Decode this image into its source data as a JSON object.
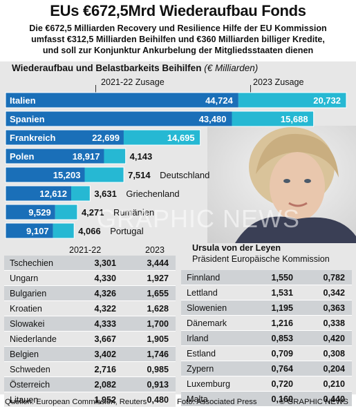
{
  "header": {
    "title": "EUs €672,5Mrd Wiederaufbau Fonds",
    "subtitle_lines": [
      "Die €672,5 Milliarden Recovery und Resilience Hilfe der EU Kommission",
      "umfasst €312,5 Milliarden Beihilfen und €360 Milliarden billiger Kredite,",
      "und soll zur Konjunktur Ankurbelung der Mitgliedsstaaten dienen"
    ]
  },
  "legend": {
    "first": "2021-22 Zusage",
    "second": "2023 Zusage"
  },
  "colors": {
    "primary": "#1a6fb8",
    "secondary": "#26b8d3",
    "band": "#e7e7e7",
    "row": "#cfd2d5"
  },
  "chart_data": {
    "type": "bar",
    "title": "Wiederaufbau und Belastbarkeits Beihilfen",
    "unit": "(€ Milliarden)",
    "categories": [
      "Italien",
      "Spanien",
      "Frankreich",
      "Polen",
      "Deutschland",
      "Griechenland",
      "Rumänien",
      "Portugal"
    ],
    "series": [
      {
        "name": "2021-22 Zusage",
        "values": [
          44.724,
          43.48,
          22.699,
          18.917,
          15.203,
          12.612,
          9.529,
          9.107
        ],
        "labels": [
          "44,724",
          "43,480",
          "22,699",
          "18,917",
          "15,203",
          "12,612",
          "9,529",
          "9,107"
        ]
      },
      {
        "name": "2023 Zusage",
        "values": [
          20.732,
          15.688,
          14.695,
          4.143,
          7.514,
          3.631,
          4.271,
          4.066
        ],
        "labels": [
          "20,732",
          "15,688",
          "14,695",
          "4,143",
          "7,514",
          "3,631",
          "4,271",
          "4,066"
        ]
      }
    ],
    "stacked": true
  },
  "person": {
    "name": "Ursula von der Leyen",
    "role": "Präsident Europäische Kommission",
    "watermark": "GRAPHIC NEWS"
  },
  "table": {
    "col1": "2021-22",
    "col2": "2023",
    "left": [
      {
        "country": "Tschechien",
        "a": "3,301",
        "b": "3,444"
      },
      {
        "country": "Ungarn",
        "a": "4,330",
        "b": "1,927"
      },
      {
        "country": "Bulgarien",
        "a": "4,326",
        "b": "1,655"
      },
      {
        "country": "Kroatien",
        "a": "4,322",
        "b": "1,628"
      },
      {
        "country": "Slowakei",
        "a": "4,333",
        "b": "1,700"
      },
      {
        "country": "Niederlande",
        "a": "3,667",
        "b": "1,905"
      },
      {
        "country": "Belgien",
        "a": "3,402",
        "b": "1,746"
      },
      {
        "country": "Schweden",
        "a": "2,716",
        "b": "0,985"
      },
      {
        "country": "Österreich",
        "a": "2,082",
        "b": "0,913"
      },
      {
        "country": "Litauen",
        "a": "1,952",
        "b": "0,480"
      }
    ],
    "right": [
      {
        "country": "Finnland",
        "a": "1,550",
        "b": "0,782"
      },
      {
        "country": "Lettland",
        "a": "1,531",
        "b": "0,342"
      },
      {
        "country": "Slowenien",
        "a": "1,195",
        "b": "0,363"
      },
      {
        "country": "Dänemark",
        "a": "1,216",
        "b": "0,338"
      },
      {
        "country": "Irland",
        "a": "0,853",
        "b": "0,420"
      },
      {
        "country": "Estland",
        "a": "0,709",
        "b": "0,308"
      },
      {
        "country": "Zypern",
        "a": "0,764",
        "b": "0,204"
      },
      {
        "country": "Luxemburg",
        "a": "0,720",
        "b": "0,210"
      },
      {
        "country": "Malta",
        "a": "0,160",
        "b": "0,440"
      }
    ]
  },
  "footer": {
    "sources": "Quellen: European Commission, Reuters",
    "photo": "Foto: Associated Press",
    "copyright": "© GRAPHIC NEWS"
  }
}
